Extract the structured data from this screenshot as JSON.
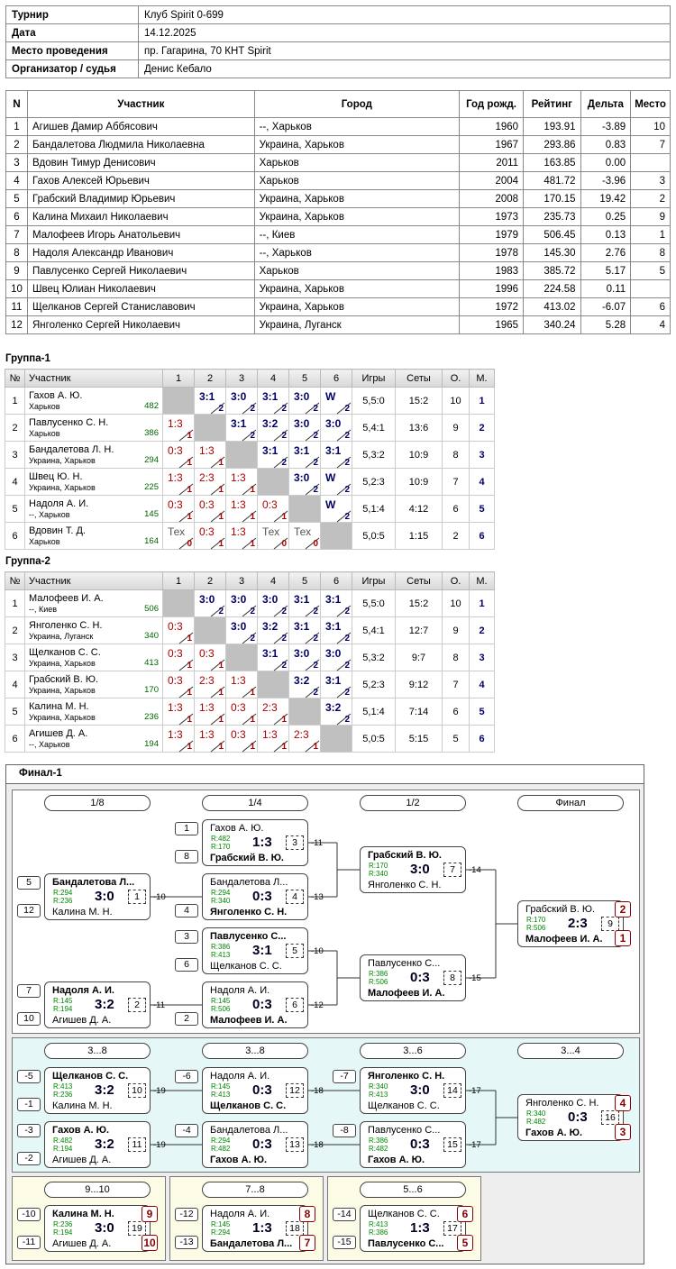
{
  "info": [
    {
      "k": "Турнир",
      "v": "Клуб Spirit 0-699"
    },
    {
      "k": "Дата",
      "v": "14.12.2025"
    },
    {
      "k": "Место проведения",
      "v": "пр. Гагарина, 70 КНТ Spirit"
    },
    {
      "k": "Организатор / судья",
      "v": "Денис Кебало"
    }
  ],
  "participants": {
    "headers": [
      "N",
      "Участник",
      "Город",
      "Год рожд.",
      "Рейтинг",
      "Дельта",
      "Место"
    ],
    "rows": [
      [
        "1",
        "Агишев Дамир Аббясович",
        "--, Харьков",
        "1960",
        "193.91",
        "-3.89",
        "10"
      ],
      [
        "2",
        "Бандалетова Людмила Николаевна",
        "Украина, Харьков",
        "1967",
        "293.86",
        "0.83",
        "7"
      ],
      [
        "3",
        "Вдовин Тимур Денисович",
        "Харьков",
        "2011",
        "163.85",
        "0.00",
        ""
      ],
      [
        "4",
        "Гахов Алексей Юрьевич",
        "Харьков",
        "2004",
        "481.72",
        "-3.96",
        "3"
      ],
      [
        "5",
        "Грабский Владимир Юрьевич",
        "Украина, Харьков",
        "2008",
        "170.15",
        "19.42",
        "2"
      ],
      [
        "6",
        "Калина Михаил Николаевич",
        "Украина, Харьков",
        "1973",
        "235.73",
        "0.25",
        "9"
      ],
      [
        "7",
        "Малофеев Игорь Анатольевич",
        "--, Киев",
        "1979",
        "506.45",
        "0.13",
        "1"
      ],
      [
        "8",
        "Надоля Александр Иванович",
        "--, Харьков",
        "1978",
        "145.30",
        "2.76",
        "8"
      ],
      [
        "9",
        "Павлусенко Сергей Николаевич",
        "Харьков",
        "1983",
        "385.72",
        "5.17",
        "5"
      ],
      [
        "10",
        "Швец Юлиан Николаевич",
        "Украина, Харьков",
        "1996",
        "224.58",
        "0.11",
        ""
      ],
      [
        "11",
        "Щелканов Сергей Станиславович",
        "Украина, Харьков",
        "1972",
        "413.02",
        "-6.07",
        "6"
      ],
      [
        "12",
        "Янголенко Сергей Николаевич",
        "Украина, Луганск",
        "1965",
        "340.24",
        "5.28",
        "4"
      ]
    ]
  },
  "group_headers": [
    "№",
    "Участник",
    "1",
    "2",
    "3",
    "4",
    "5",
    "6",
    "Игры",
    "Сеты",
    "О.",
    "М."
  ],
  "groups": [
    {
      "title": "Группа-1",
      "rows": [
        {
          "n": "1",
          "name": "Гахов А. Ю.",
          "city": "Харьков",
          "rating": "482",
          "res": [
            "X",
            "3:1|2|w",
            "3:0|2|w",
            "3:1|2|w",
            "3:0|2|w",
            "W|2|w"
          ],
          "games": "5,5:0",
          "sets": "15:2",
          "pts": "10",
          "place": "1"
        },
        {
          "n": "2",
          "name": "Павлусенко С. Н.",
          "city": "Харьков",
          "rating": "386",
          "res": [
            "1:3|1|l",
            "X",
            "3:1|2|w",
            "3:2|2|w",
            "3:0|2|w",
            "3:0|2|w"
          ],
          "games": "5,4:1",
          "sets": "13:6",
          "pts": "9",
          "place": "2"
        },
        {
          "n": "3",
          "name": "Бандалетова Л. Н.",
          "city": "Украина, Харьков",
          "rating": "294",
          "res": [
            "0:3|1|l",
            "1:3|1|l",
            "X",
            "3:1|2|w",
            "3:1|2|w",
            "3:1|2|w"
          ],
          "games": "5,3:2",
          "sets": "10:9",
          "pts": "8",
          "place": "3"
        },
        {
          "n": "4",
          "name": "Швец Ю. Н.",
          "city": "Украина, Харьков",
          "rating": "225",
          "res": [
            "1:3|1|l",
            "2:3|1|l",
            "1:3|1|l",
            "X",
            "3:0|2|w",
            "W|2|w"
          ],
          "games": "5,2:3",
          "sets": "10:9",
          "pts": "7",
          "place": "4"
        },
        {
          "n": "5",
          "name": "Надоля А. И.",
          "city": "--, Харьков",
          "rating": "145",
          "res": [
            "0:3|1|l",
            "0:3|1|l",
            "1:3|1|l",
            "0:3|1|l",
            "X",
            "W|2|w"
          ],
          "games": "5,1:4",
          "sets": "4:12",
          "pts": "6",
          "place": "5"
        },
        {
          "n": "6",
          "name": "Вдовин Т. Д.",
          "city": "Харьков",
          "rating": "164",
          "res": [
            "Тех|0|t",
            "0:3|1|l",
            "1:3|1|l",
            "Тех|0|t",
            "Тех|0|t",
            "X"
          ],
          "games": "5,0:5",
          "sets": "1:15",
          "pts": "2",
          "place": "6"
        }
      ]
    },
    {
      "title": "Группа-2",
      "rows": [
        {
          "n": "1",
          "name": "Малофеев И. А.",
          "city": "--, Киев",
          "rating": "506",
          "res": [
            "X",
            "3:0|2|w",
            "3:0|2|w",
            "3:0|2|w",
            "3:1|2|w",
            "3:1|2|w"
          ],
          "games": "5,5:0",
          "sets": "15:2",
          "pts": "10",
          "place": "1"
        },
        {
          "n": "2",
          "name": "Янголенко С. Н.",
          "city": "Украина, Луганск",
          "rating": "340",
          "res": [
            "0:3|1|l",
            "X",
            "3:0|2|w",
            "3:2|2|w",
            "3:1|2|w",
            "3:1|2|w"
          ],
          "games": "5,4:1",
          "sets": "12:7",
          "pts": "9",
          "place": "2"
        },
        {
          "n": "3",
          "name": "Щелканов С. С.",
          "city": "Украина, Харьков",
          "rating": "413",
          "res": [
            "0:3|1|l",
            "0:3|1|l",
            "X",
            "3:1|2|w",
            "3:0|2|w",
            "3:0|2|w"
          ],
          "games": "5,3:2",
          "sets": "9:7",
          "pts": "8",
          "place": "3"
        },
        {
          "n": "4",
          "name": "Грабский В. Ю.",
          "city": "Украина, Харьков",
          "rating": "170",
          "res": [
            "0:3|1|l",
            "2:3|1|l",
            "1:3|1|l",
            "X",
            "3:2|2|w",
            "3:1|2|w"
          ],
          "games": "5,2:3",
          "sets": "9:12",
          "pts": "7",
          "place": "4"
        },
        {
          "n": "5",
          "name": "Калина М. Н.",
          "city": "Украина, Харьков",
          "rating": "236",
          "res": [
            "1:3|1|l",
            "1:3|1|l",
            "0:3|1|l",
            "2:3|1|l",
            "X",
            "3:2|2|w"
          ],
          "games": "5,1:4",
          "sets": "7:14",
          "pts": "6",
          "place": "5"
        },
        {
          "n": "6",
          "name": "Агишев Д. А.",
          "city": "--, Харьков",
          "rating": "194",
          "res": [
            "1:3|1|l",
            "1:3|1|l",
            "0:3|1|l",
            "1:3|1|l",
            "2:3|1|l",
            "X"
          ],
          "games": "5,0:5",
          "sets": "5:15",
          "pts": "5",
          "place": "6"
        }
      ]
    }
  ],
  "final": {
    "title": "Финал-1",
    "rounds": [
      {
        "label": "1/8",
        "sec": 0,
        "col": 0
      },
      {
        "label": "1/4",
        "sec": 0,
        "col": 1
      },
      {
        "label": "1/2",
        "sec": 0,
        "col": 2
      },
      {
        "label": "Финал",
        "sec": 0,
        "col": 3
      },
      {
        "label": "3...8",
        "sec": 1,
        "col": 0
      },
      {
        "label": "3...8",
        "sec": 1,
        "col": 1
      },
      {
        "label": "3...6",
        "sec": 1,
        "col": 2
      },
      {
        "label": "3...4",
        "sec": 1,
        "col": 3
      },
      {
        "label": "9...10",
        "sec": 2,
        "col": 0
      },
      {
        "label": "7...8",
        "sec": 3,
        "col": 0
      },
      {
        "label": "5...6",
        "sec": 4,
        "col": 0
      }
    ],
    "matches": [
      {
        "id": "m1",
        "p1": "Гахов А. Ю.",
        "p2": "Грабский В. Ю.",
        "win": 2,
        "r1": "R:482",
        "r2": "R:170",
        "score": "1:3",
        "num": "3",
        "seeds": [
          "1",
          "8"
        ],
        "next": "-11"
      },
      {
        "id": "m2",
        "p1": "Бандалетова Л...",
        "p2": "Калина М. Н.",
        "win": 1,
        "r1": "R:294",
        "r2": "R:236",
        "score": "3:0",
        "num": "1",
        "seeds": [
          "5",
          "12"
        ],
        "next": "-10"
      },
      {
        "id": "m3",
        "p1": "Бандалетова Л...",
        "p2": "Янголенко С. Н.",
        "win": 2,
        "r1": "R:294",
        "r2": "R:340",
        "score": "0:3",
        "num": "4",
        "seeds": [
          "",
          "4"
        ],
        "next": "-13"
      },
      {
        "id": "m4",
        "p1": "Павлусенко С...",
        "p2": "Щелканов С. С.",
        "win": 1,
        "r1": "R:386",
        "r2": "R:413",
        "score": "3:1",
        "num": "5",
        "seeds": [
          "3",
          "6"
        ],
        "next": "-10"
      },
      {
        "id": "m5",
        "p1": "Надоля А. И.",
        "p2": "Агишев Д. А.",
        "win": 1,
        "r1": "R:145",
        "r2": "R:194",
        "score": "3:2",
        "num": "2",
        "seeds": [
          "7",
          "10"
        ],
        "next": "-11"
      },
      {
        "id": "m6",
        "p1": "Надоля А. И.",
        "p2": "Малофеев И. А.",
        "win": 2,
        "r1": "R:145",
        "r2": "R:506",
        "score": "0:3",
        "num": "6",
        "seeds": [
          "",
          "2"
        ],
        "next": "-12"
      },
      {
        "id": "m7",
        "p1": "Грабский В. Ю.",
        "p2": "Янголенко С. Н.",
        "win": 1,
        "r1": "R:170",
        "r2": "R:340",
        "score": "3:0",
        "num": "7",
        "seeds": [
          "",
          ""
        ],
        "next": "-14"
      },
      {
        "id": "m8",
        "p1": "Павлусенко С...",
        "p2": "Малофеев И. А.",
        "win": 2,
        "r1": "R:386",
        "r2": "R:506",
        "score": "0:3",
        "num": "8",
        "seeds": [
          "",
          ""
        ],
        "next": "-15"
      },
      {
        "id": "m9",
        "p1": "Грабский В. Ю.",
        "p2": "Малофеев И. А.",
        "win": 2,
        "r1": "R:170",
        "r2": "R:506",
        "score": "2:3",
        "num": "9",
        "seeds": [
          "",
          ""
        ],
        "next": "",
        "places": [
          "2",
          "1"
        ]
      },
      {
        "id": "m10",
        "p1": "Щелканов С. С.",
        "p2": "Калина М. Н.",
        "win": 1,
        "r1": "R:413",
        "r2": "R:236",
        "score": "3:2",
        "num": "10",
        "seeds": [
          "-5",
          "-1"
        ],
        "next": "-19"
      },
      {
        "id": "m11",
        "p1": "Гахов А. Ю.",
        "p2": "Агишев Д. А.",
        "win": 1,
        "r1": "R:482",
        "r2": "R:194",
        "score": "3:2",
        "num": "11",
        "seeds": [
          "-3",
          "-2"
        ],
        "next": "-19"
      },
      {
        "id": "m12",
        "p1": "Надоля А. И.",
        "p2": "Щелканов С. С.",
        "win": 2,
        "r1": "R:145",
        "r2": "R:413",
        "score": "0:3",
        "num": "12",
        "seeds": [
          "-6",
          ""
        ],
        "next": "-18"
      },
      {
        "id": "m13",
        "p1": "Бандалетова Л...",
        "p2": "Гахов А. Ю.",
        "win": 2,
        "r1": "R:294",
        "r2": "R:482",
        "score": "0:3",
        "num": "13",
        "seeds": [
          "-4",
          ""
        ],
        "next": "-18"
      },
      {
        "id": "m14",
        "p1": "Янголенко С. Н.",
        "p2": "Щелканов С. С.",
        "win": 1,
        "r1": "R:340",
        "r2": "R:413",
        "score": "3:0",
        "num": "14",
        "seeds": [
          "-7",
          ""
        ],
        "next": "-17"
      },
      {
        "id": "m15",
        "p1": "Павлусенко С...",
        "p2": "Гахов А. Ю.",
        "win": 2,
        "r1": "R:386",
        "r2": "R:482",
        "score": "0:3",
        "num": "15",
        "seeds": [
          "-8",
          ""
        ],
        "next": "-17"
      },
      {
        "id": "m16",
        "p1": "Янголенко С. Н.",
        "p2": "Гахов А. Ю.",
        "win": 2,
        "r1": "R:340",
        "r2": "R:482",
        "score": "0:3",
        "num": "16",
        "seeds": [
          "",
          ""
        ],
        "next": "",
        "places": [
          "4",
          "3"
        ]
      },
      {
        "id": "m19",
        "p1": "Калина М. Н.",
        "p2": "Агишев Д. А.",
        "win": 1,
        "r1": "R:236",
        "r2": "R:194",
        "score": "3:0",
        "num": "19",
        "seeds": [
          "-10",
          "-11"
        ],
        "next": "",
        "places": [
          "9",
          "10"
        ]
      },
      {
        "id": "m18",
        "p1": "Надоля А. И.",
        "p2": "Бандалетова Л...",
        "win": 2,
        "r1": "R:145",
        "r2": "R:294",
        "score": "1:3",
        "num": "18",
        "seeds": [
          "-12",
          "-13"
        ],
        "next": "",
        "places": [
          "8",
          "7"
        ]
      },
      {
        "id": "m17",
        "p1": "Щелканов С. С.",
        "p2": "Павлусенко С...",
        "win": 2,
        "r1": "R:413",
        "r2": "R:386",
        "score": "1:3",
        "num": "17",
        "seeds": [
          "-14",
          "-15"
        ],
        "next": "",
        "places": [
          "6",
          "5"
        ]
      }
    ]
  },
  "colors": {
    "win": "#000066",
    "loss": "#aa0000",
    "place": "#880000",
    "section_consolation": "#e6f7f7",
    "section_lower": "#fcfce6"
  }
}
